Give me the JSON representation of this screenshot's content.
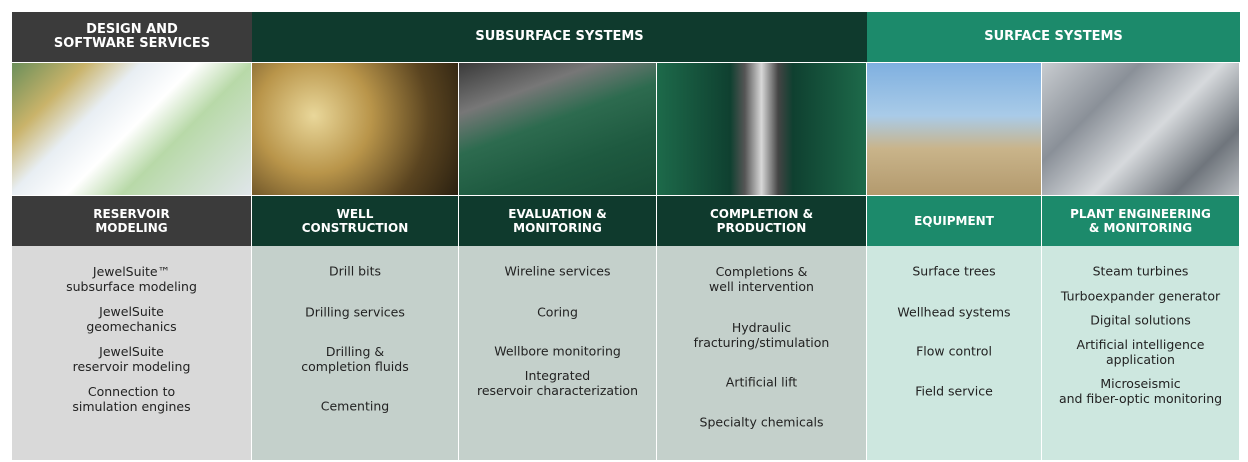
{
  "groups": [
    {
      "title": "DESIGN AND\nSOFTWARE SERVICES"
    },
    {
      "title": "SUBSURFACE SYSTEMS"
    },
    {
      "title": "SURFACE SYSTEMS"
    }
  ],
  "columns": [
    {
      "title": "RESERVOIR\nMODELING",
      "items": [
        "JewelSuite™\nsubsurface modeling",
        "JewelSuite\ngeomechanics",
        "JewelSuite\nreservoir modeling",
        "Connection to\nsimulation engines"
      ]
    },
    {
      "title": "WELL\nCONSTRUCTION",
      "items": [
        "Drill bits",
        "Drilling services",
        "Drilling &\ncompletion fluids",
        "Cementing"
      ]
    },
    {
      "title": "EVALUATION &\nMONITORING",
      "items": [
        "Wireline services",
        "Coring",
        "Wellbore monitoring",
        "Integrated\nreservoir characterization"
      ]
    },
    {
      "title": "COMPLETION &\nPRODUCTION",
      "items": [
        "Completions &\nwell intervention",
        "Hydraulic\nfracturing/stimulation",
        "Artificial lift",
        "Specialty chemicals"
      ]
    },
    {
      "title": "EQUIPMENT",
      "items": [
        "Surface trees",
        "Wellhead systems",
        "Flow control",
        "Field service"
      ]
    },
    {
      "title": "PLANT ENGINEERING\n& MONITORING",
      "items": [
        "Steam turbines",
        "Turboexpander generator",
        "Digital solutions",
        "Artificial intelligence\napplication",
        "Microseismic\nand fiber-optic monitoring"
      ]
    }
  ]
}
